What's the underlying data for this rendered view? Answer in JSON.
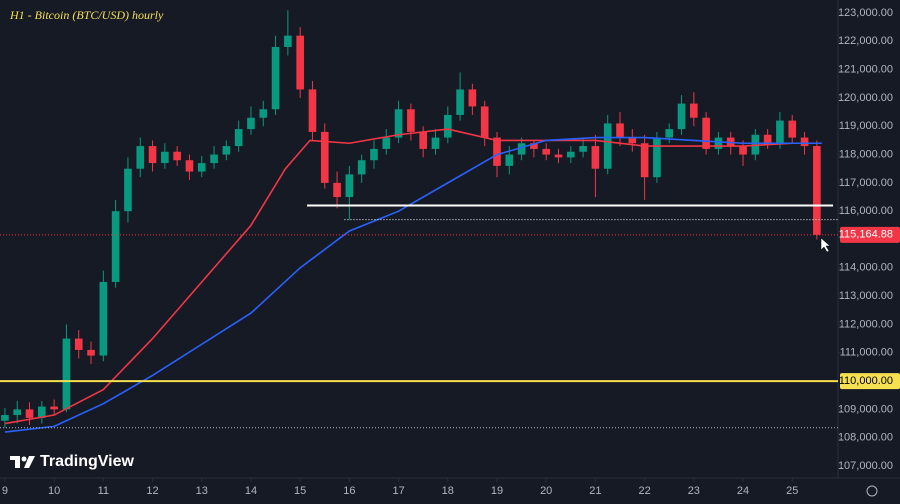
{
  "chart_data": {
    "type": "candlestick",
    "title": "H1 - Bitcoin (BTC/USD) hourly",
    "watermark": "TradingView",
    "up_color": "#089981",
    "down_color": "#f23645",
    "x": [
      9,
      9.25,
      9.5,
      9.75,
      10,
      10.25,
      10.5,
      10.75,
      11,
      11.25,
      11.5,
      11.75,
      12,
      12.25,
      12.5,
      12.75,
      13,
      13.25,
      13.5,
      13.75,
      14,
      14.25,
      14.5,
      14.75,
      15,
      15.25,
      15.5,
      15.75,
      16,
      16.25,
      16.5,
      16.75,
      17,
      17.25,
      17.5,
      17.75,
      18,
      18.25,
      18.5,
      18.75,
      19,
      19.25,
      19.5,
      19.75,
      20,
      20.25,
      20.5,
      20.75,
      21,
      21.25,
      21.5,
      21.75,
      22,
      22.25,
      22.5,
      22.75,
      23,
      23.25,
      23.5,
      23.75,
      24,
      24.25,
      24.5,
      24.75,
      25,
      25.25,
      25.5
    ],
    "open": [
      108600,
      108800,
      109000,
      108700,
      109100,
      109000,
      111500,
      111100,
      110900,
      113500,
      116000,
      117500,
      118300,
      117700,
      118100,
      117800,
      117400,
      117700,
      118000,
      118300,
      118900,
      119300,
      119600,
      121800,
      122200,
      120300,
      118800,
      117000,
      116500,
      117300,
      117800,
      118200,
      118600,
      119600,
      118800,
      118200,
      118600,
      119400,
      120300,
      119700,
      118600,
      117600,
      118000,
      118400,
      118200,
      118000,
      117900,
      118100,
      118300,
      117500,
      119100,
      118600,
      118400,
      117200,
      118600,
      118900,
      119800,
      119300,
      118200,
      118600,
      118300,
      118000,
      118700,
      118400,
      119200,
      118600,
      118300
    ],
    "high": [
      109050,
      109300,
      109250,
      109300,
      109350,
      112000,
      111800,
      111400,
      113900,
      116400,
      117900,
      118600,
      118500,
      118400,
      118300,
      118000,
      117950,
      118300,
      118500,
      119200,
      119700,
      119900,
      122200,
      123100,
      122500,
      120600,
      119100,
      117400,
      117600,
      118000,
      118500,
      118900,
      119900,
      119800,
      119000,
      118900,
      119700,
      120900,
      120500,
      119900,
      118800,
      118300,
      118600,
      118500,
      118400,
      118200,
      118300,
      118600,
      118700,
      119400,
      119500,
      118900,
      118700,
      118800,
      119100,
      120100,
      120200,
      119500,
      118800,
      118800,
      118500,
      118900,
      118900,
      119500,
      119400,
      118800,
      118500
    ],
    "low": [
      108350,
      108500,
      108450,
      108500,
      108800,
      108900,
      110800,
      110600,
      110700,
      113300,
      115600,
      117200,
      117400,
      117500,
      117600,
      117100,
      117200,
      117500,
      117800,
      118100,
      118700,
      119000,
      119400,
      121500,
      120000,
      118500,
      116800,
      116100,
      115700,
      117000,
      117500,
      118000,
      118400,
      118500,
      117900,
      118000,
      118400,
      119200,
      119400,
      118300,
      117200,
      117300,
      117800,
      117900,
      117800,
      117700,
      117700,
      117900,
      116500,
      117300,
      118300,
      118100,
      116400,
      117000,
      118400,
      118700,
      119000,
      118000,
      118000,
      118000,
      117600,
      117800,
      118200,
      118200,
      118400,
      118000,
      115000
    ],
    "close": [
      108800,
      109000,
      108700,
      109100,
      109000,
      111500,
      111100,
      110900,
      113500,
      116000,
      117500,
      118300,
      117700,
      118100,
      117800,
      117400,
      117700,
      118000,
      118300,
      118900,
      119300,
      119600,
      121800,
      122200,
      120300,
      118800,
      117000,
      116500,
      117300,
      117800,
      118200,
      118600,
      119600,
      118800,
      118200,
      118600,
      119400,
      120300,
      119700,
      118600,
      117600,
      118000,
      118400,
      118200,
      118000,
      117900,
      118100,
      118300,
      117500,
      119100,
      118600,
      118400,
      117200,
      118600,
      118900,
      119800,
      119300,
      118200,
      118600,
      118300,
      118000,
      118700,
      118400,
      119200,
      118600,
      118300,
      115165
    ],
    "lines": [
      {
        "color": "#f23645",
        "x": [
          9,
          10,
          11,
          12,
          13,
          14,
          14.7,
          15.2,
          16,
          17,
          18,
          19,
          20,
          21,
          22,
          23,
          24,
          25,
          25.6
        ],
        "values": [
          108500,
          108800,
          109700,
          111500,
          113500,
          115500,
          117500,
          118500,
          118400,
          118700,
          118900,
          118500,
          118500,
          118500,
          118300,
          118300,
          118300,
          118400,
          118400
        ]
      },
      {
        "color": "#2962ff",
        "x": [
          9,
          10,
          11,
          12,
          13,
          14,
          15,
          16,
          17,
          18,
          19,
          20,
          21,
          22,
          23,
          24,
          25.6
        ],
        "values": [
          108200,
          108400,
          109200,
          110200,
          111300,
          112400,
          114000,
          115300,
          116000,
          117000,
          118000,
          118500,
          118600,
          118600,
          118500,
          118400,
          118400
        ]
      }
    ],
    "levels": [
      {
        "value": 116200,
        "color": "#ffffff",
        "style": "solid",
        "x": [
          15.14,
          25.83
        ]
      },
      {
        "value": 115700,
        "color": "#ffffff",
        "style": "dotted",
        "x": [
          15.9,
          25.93
        ]
      },
      {
        "value": {
          "value": 110000,
          "label": "110,000.00"
        },
        "color": "#f5e050",
        "style": "solid",
        "x": [
          8.9,
          25.93
        ]
      },
      {
        "value": 108350,
        "color": "#b2b5be",
        "style": "dotted",
        "x": [
          8.9,
          25.93
        ]
      },
      {
        "value": {
          "value": 115164.88,
          "label": "115,164.88"
        },
        "color": "#f23645",
        "style": "dotted",
        "x": [
          8.9,
          25.93
        ]
      }
    ],
    "xlim": [
      8.9,
      25.93
    ],
    "xticks": [
      9,
      10,
      11,
      12,
      13,
      14,
      15,
      16,
      17,
      18,
      19,
      20,
      21,
      22,
      23,
      24,
      25
    ],
    "ylim": [
      107000,
      123000
    ],
    "yticks": [
      {
        "value": 107000,
        "label": "107,000.00"
      },
      {
        "value": 108000,
        "label": "108,000.00"
      },
      {
        "value": 109000,
        "label": "109,000.00"
      },
      {
        "value": 111000,
        "label": "111,000.00"
      },
      {
        "value": 112000,
        "label": "112,000.00"
      },
      {
        "value": 113000,
        "label": "113,000.00"
      },
      {
        "value": 114000,
        "label": "114,000.00"
      },
      {
        "value": 116000,
        "label": "116,000.00"
      },
      {
        "value": 117000,
        "label": "117,000.00"
      },
      {
        "value": 118000,
        "label": "118,000.00"
      },
      {
        "value": 119000,
        "label": "119,000.00"
      },
      {
        "value": 120000,
        "label": "120,000.00"
      },
      {
        "value": 121000,
        "label": "121,000.00"
      },
      {
        "value": 122000,
        "label": "122,000.00"
      },
      {
        "value": 123000,
        "label": "123,000.00"
      }
    ]
  }
}
